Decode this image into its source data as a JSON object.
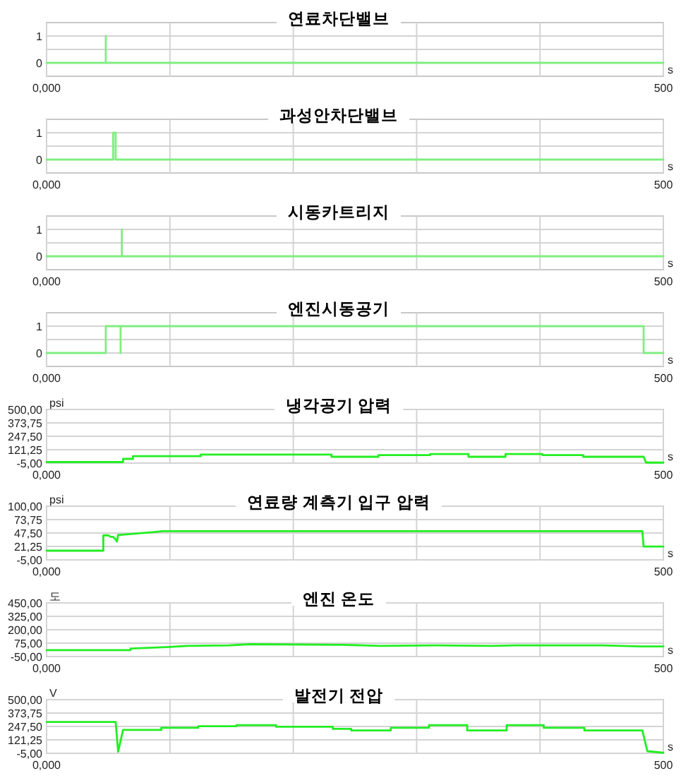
{
  "chart_data": [
    {
      "type": "line",
      "title": "연료차단밸브",
      "xlabel": "s",
      "x": [
        0,
        48,
        48,
        48,
        500
      ],
      "xlim": [
        0,
        500
      ],
      "ylim": [
        -0.5,
        1.5
      ],
      "xticks": [
        {
          "value": 0,
          "label": "0,000"
        },
        {
          "value": 100,
          "label": null
        },
        {
          "value": 200,
          "label": null
        },
        {
          "value": 300,
          "label": null
        },
        {
          "value": 400,
          "label": null
        },
        {
          "value": 500,
          "label": "500"
        }
      ],
      "yticks": [
        {
          "value": 0,
          "label": "0"
        },
        {
          "value": 0.5,
          "label": null
        },
        {
          "value": 1,
          "label": "1"
        }
      ],
      "grid": true,
      "series": [
        {
          "color": "#80ee80",
          "values": [
            0,
            0,
            1,
            0,
            0
          ]
        }
      ]
    },
    {
      "type": "line",
      "title": "과성안차단밸브",
      "xlabel": "s",
      "x": [
        0,
        54,
        54,
        56,
        56,
        500
      ],
      "xlim": [
        0,
        500
      ],
      "ylim": [
        -0.5,
        1.5
      ],
      "xticks": [
        {
          "value": 0,
          "label": "0,000"
        },
        {
          "value": 100,
          "label": null
        },
        {
          "value": 200,
          "label": null
        },
        {
          "value": 300,
          "label": null
        },
        {
          "value": 400,
          "label": null
        },
        {
          "value": 500,
          "label": "500"
        }
      ],
      "yticks": [
        {
          "value": 0,
          "label": "0"
        },
        {
          "value": 0.5,
          "label": null
        },
        {
          "value": 1,
          "label": "1"
        }
      ],
      "grid": true,
      "series": [
        {
          "color": "#80ee80",
          "values": [
            0,
            0,
            1,
            1,
            0,
            0
          ]
        }
      ]
    },
    {
      "type": "line",
      "title": "시동카트리지",
      "xlabel": "s",
      "x": [
        0,
        61,
        61,
        61,
        500
      ],
      "xlim": [
        0,
        500
      ],
      "ylim": [
        -0.5,
        1.5
      ],
      "xticks": [
        {
          "value": 0,
          "label": "0,000"
        },
        {
          "value": 100,
          "label": null
        },
        {
          "value": 200,
          "label": null
        },
        {
          "value": 300,
          "label": null
        },
        {
          "value": 400,
          "label": null
        },
        {
          "value": 500,
          "label": "500"
        }
      ],
      "yticks": [
        {
          "value": 0,
          "label": "0"
        },
        {
          "value": 0.5,
          "label": null
        },
        {
          "value": 1,
          "label": "1"
        }
      ],
      "grid": true,
      "series": [
        {
          "color": "#80ee80",
          "values": [
            0,
            0,
            1,
            0,
            0
          ]
        }
      ]
    },
    {
      "type": "line",
      "title": "엔진시동공기",
      "xlabel": "s",
      "x": [
        0,
        48,
        48,
        60,
        60,
        60,
        484,
        484,
        500
      ],
      "xlim": [
        0,
        500
      ],
      "ylim": [
        -0.5,
        1.5
      ],
      "xticks": [
        {
          "value": 0,
          "label": "0,000"
        },
        {
          "value": 100,
          "label": null
        },
        {
          "value": 200,
          "label": null
        },
        {
          "value": 300,
          "label": null
        },
        {
          "value": 400,
          "label": null
        },
        {
          "value": 500,
          "label": "500"
        }
      ],
      "yticks": [
        {
          "value": 0,
          "label": "0"
        },
        {
          "value": 0.5,
          "label": null
        },
        {
          "value": 1,
          "label": "1"
        }
      ],
      "grid": true,
      "series": [
        {
          "color": "#80ee80",
          "values": [
            0,
            0,
            1,
            1,
            0,
            1,
            1,
            0,
            0
          ]
        }
      ]
    },
    {
      "type": "line",
      "title": "냉각공기 압력",
      "xlabel": "s",
      "ylabel": "psi",
      "x": [
        0,
        62,
        62,
        70,
        70,
        125,
        125,
        231,
        231,
        269,
        269,
        311,
        311,
        342,
        342,
        372,
        372,
        402,
        402,
        435,
        435,
        484,
        486,
        500
      ],
      "xlim": [
        0,
        500
      ],
      "ylim": [
        -5,
        500
      ],
      "xticks": [
        {
          "value": 0,
          "label": "0,000"
        },
        {
          "value": 100,
          "label": null
        },
        {
          "value": 200,
          "label": null
        },
        {
          "value": 300,
          "label": null
        },
        {
          "value": 400,
          "label": null
        },
        {
          "value": 500,
          "label": "500"
        }
      ],
      "yticks": [
        {
          "value": -5,
          "label": "-5,00"
        },
        {
          "value": 121.25,
          "label": "121,25"
        },
        {
          "value": 247.5,
          "label": "247,50"
        },
        {
          "value": 373.75,
          "label": "373,75"
        },
        {
          "value": 500,
          "label": "500,00"
        }
      ],
      "grid": true,
      "series": [
        {
          "color": "#22ee22",
          "values": [
            5,
            5,
            35,
            35,
            60,
            60,
            75,
            75,
            55,
            55,
            70,
            70,
            80,
            80,
            55,
            55,
            80,
            80,
            70,
            70,
            55,
            55,
            0,
            0
          ]
        }
      ]
    },
    {
      "type": "line",
      "title": "연료량 계측기 입구 압력",
      "xlabel": "s",
      "ylabel": "psi",
      "x": [
        0,
        46,
        46,
        50,
        52,
        54,
        55,
        56,
        57,
        58,
        60,
        75,
        86,
        94,
        483,
        484,
        500
      ],
      "xlim": [
        0,
        500
      ],
      "ylim": [
        -5,
        100
      ],
      "xticks": [
        {
          "value": 0,
          "label": "0,000"
        },
        {
          "value": 100,
          "label": null
        },
        {
          "value": 200,
          "label": null
        },
        {
          "value": 300,
          "label": null
        },
        {
          "value": 400,
          "label": null
        },
        {
          "value": 500,
          "label": "500"
        }
      ],
      "yticks": [
        {
          "value": -5,
          "label": "-5,00"
        },
        {
          "value": 21.25,
          "label": "21,25"
        },
        {
          "value": 47.5,
          "label": "47,50"
        },
        {
          "value": 73.75,
          "label": "73,75"
        },
        {
          "value": 100,
          "label": "100,00"
        }
      ],
      "grid": true,
      "series": [
        {
          "color": "#22ee22",
          "values": [
            13,
            13,
            43,
            43,
            40,
            40,
            37,
            35,
            31,
            44,
            44,
            47,
            49,
            51,
            51,
            21,
            21
          ]
        }
      ]
    },
    {
      "type": "line",
      "title": "엔진 온도",
      "xlabel": "s",
      "ylabel": "도",
      "x": [
        0,
        68,
        68,
        100,
        114,
        148,
        165,
        240,
        270,
        316,
        361,
        380,
        450,
        482,
        500
      ],
      "xlim": [
        0,
        500
      ],
      "ylim": [
        -50,
        450
      ],
      "xticks": [
        {
          "value": 0,
          "label": "0,000"
        },
        {
          "value": 100,
          "label": null
        },
        {
          "value": 200,
          "label": null
        },
        {
          "value": 300,
          "label": null
        },
        {
          "value": 400,
          "label": null
        },
        {
          "value": 500,
          "label": "500"
        }
      ],
      "yticks": [
        {
          "value": -50,
          "label": "-50,00"
        },
        {
          "value": 75,
          "label": "75,00"
        },
        {
          "value": 200,
          "label": "200,00"
        },
        {
          "value": 325,
          "label": "325,00"
        },
        {
          "value": 450,
          "label": "450,00"
        }
      ],
      "grid": true,
      "series": [
        {
          "color": "#22ee22",
          "values": [
            10,
            10,
            25,
            40,
            50,
            55,
            65,
            60,
            50,
            55,
            50,
            55,
            55,
            45,
            45
          ]
        }
      ]
    },
    {
      "type": "line",
      "title": "발전기 전압",
      "xlabel": "s",
      "ylabel": "V",
      "x": [
        0,
        56,
        58,
        62,
        93,
        93,
        123,
        123,
        154,
        154,
        186,
        186,
        232,
        232,
        247,
        247,
        279,
        279,
        310,
        310,
        341,
        341,
        373,
        373,
        403,
        403,
        436,
        436,
        483,
        487,
        500
      ],
      "xlim": [
        0,
        500
      ],
      "ylim": [
        -5,
        500
      ],
      "xticks": [
        {
          "value": 0,
          "label": "0,000"
        },
        {
          "value": 100,
          "label": null
        },
        {
          "value": 200,
          "label": null
        },
        {
          "value": 300,
          "label": null
        },
        {
          "value": 400,
          "label": null
        },
        {
          "value": 500,
          "label": "500"
        }
      ],
      "yticks": [
        {
          "value": -5,
          "label": "-5,00"
        },
        {
          "value": 121.25,
          "label": "121,25"
        },
        {
          "value": 247.5,
          "label": "247,50"
        },
        {
          "value": 373.75,
          "label": "373,75"
        },
        {
          "value": 500,
          "label": "500,00"
        }
      ],
      "grid": true,
      "series": [
        {
          "color": "#22ee22",
          "values": [
            290,
            290,
            10,
            215,
            215,
            235,
            235,
            250,
            250,
            260,
            260,
            245,
            245,
            225,
            225,
            210,
            210,
            235,
            235,
            260,
            260,
            210,
            210,
            260,
            260,
            235,
            235,
            210,
            210,
            15,
            0
          ]
        }
      ]
    }
  ]
}
